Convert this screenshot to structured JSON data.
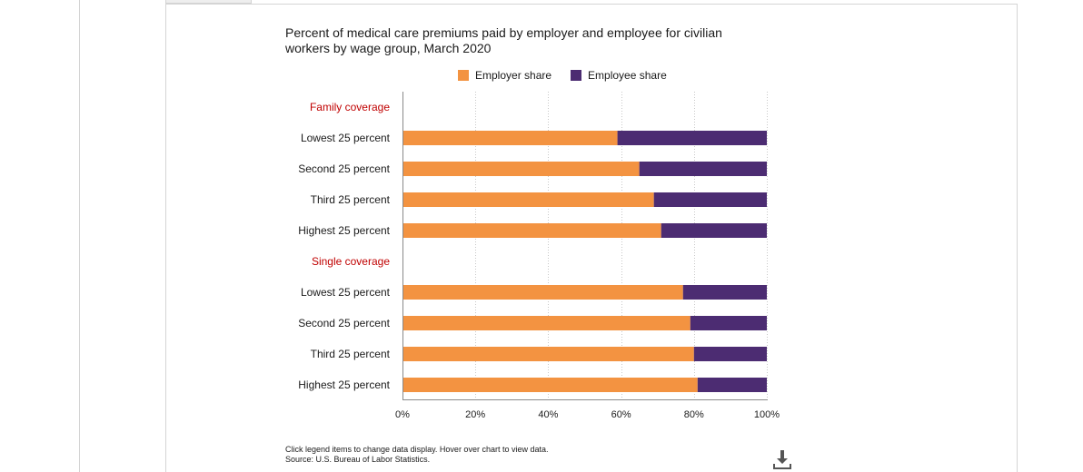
{
  "chart_data": {
    "type": "bar",
    "orientation": "horizontal",
    "stacked": true,
    "title": "Percent of medical care premiums paid by employer and employee for civilian workers by wage group, March 2020",
    "legend": [
      "Employer share",
      "Employee share"
    ],
    "colors": {
      "Employer share": "#f39341",
      "Employee share": "#4c2c72",
      "group_label": "#c00000"
    },
    "rows": [
      {
        "label": "Family coverage",
        "group_header": true
      },
      {
        "label": "Lowest 25 percent",
        "values": [
          59,
          41
        ]
      },
      {
        "label": "Second 25 percent",
        "values": [
          65,
          35
        ]
      },
      {
        "label": "Third 25 percent",
        "values": [
          69,
          31
        ]
      },
      {
        "label": "Highest 25 percent",
        "values": [
          71,
          29
        ]
      },
      {
        "label": "Single coverage",
        "group_header": true
      },
      {
        "label": "Lowest 25 percent",
        "values": [
          77,
          23
        ]
      },
      {
        "label": "Second 25 percent",
        "values": [
          79,
          21
        ]
      },
      {
        "label": "Third 25 percent",
        "values": [
          80,
          20
        ]
      },
      {
        "label": "Highest 25 percent",
        "values": [
          81,
          19
        ]
      }
    ],
    "series": [
      {
        "name": "Employer share",
        "values": [
          59,
          65,
          69,
          71,
          77,
          79,
          80,
          81
        ]
      },
      {
        "name": "Employee share",
        "values": [
          41,
          35,
          31,
          29,
          23,
          21,
          20,
          19
        ]
      }
    ],
    "xlim": [
      0,
      100
    ],
    "xticks": [
      "0%",
      "20%",
      "40%",
      "60%",
      "80%",
      "100%"
    ],
    "grid": true
  },
  "footnote": {
    "line1": "Click legend items to change data display. Hover over chart to view data.",
    "line2": "Source: U.S. Bureau of Labor Statistics."
  },
  "icons": {
    "download": "download-icon"
  }
}
